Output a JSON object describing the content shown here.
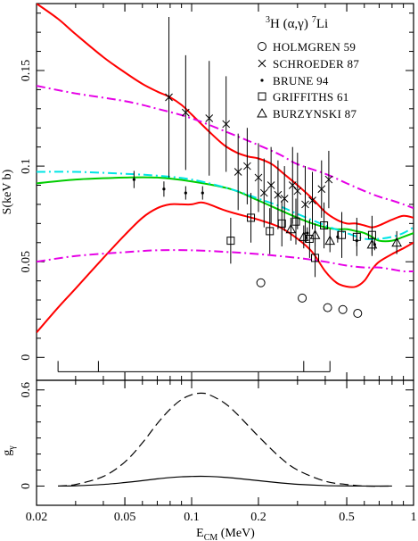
{
  "chart_data": [
    {
      "type": "scatter",
      "title": "³H (α,γ) ⁷Li",
      "title_parts": {
        "a": "3",
        "b": "H (α,γ)",
        "c": "7",
        "d": "Li"
      },
      "xlabel": "E",
      "xlabel_sub": "CM",
      "xlabel_unit": " (MeV)",
      "ylabel": "S(keV b)",
      "x_scale": "log",
      "xlim": [
        0.02,
        1.0
      ],
      "ylim": [
        -0.012,
        0.185
      ],
      "x_ticks": [
        0.02,
        0.05,
        0.1,
        0.2,
        0.5,
        1
      ],
      "x_tick_labels": [
        "0.02",
        "0.05",
        "0.1",
        "0.2",
        "0.5",
        "1"
      ],
      "y_ticks": [
        0,
        0.05,
        0.1,
        0.15
      ],
      "y_tick_labels": [
        "0",
        "0.05",
        "0.1",
        "0.15"
      ],
      "legend_position": "top-right",
      "legend": [
        {
          "marker": "circle",
          "label": "HOLMGREN 59"
        },
        {
          "marker": "cross",
          "label": "SCHROEDER 87"
        },
        {
          "marker": "dot",
          "label": "BRUNE 94"
        },
        {
          "marker": "square",
          "label": "GRIFFITHS 61"
        },
        {
          "marker": "triangle",
          "label": "BURZYNSKI 87"
        }
      ],
      "series": [
        {
          "name": "HOLMGREN 59",
          "marker": "circle",
          "points": [
            {
              "x": 0.205,
              "y": 0.039
            },
            {
              "x": 0.315,
              "y": 0.031
            },
            {
              "x": 0.41,
              "y": 0.026
            },
            {
              "x": 0.48,
              "y": 0.025
            },
            {
              "x": 0.56,
              "y": 0.023
            }
          ]
        },
        {
          "name": "SCHROEDER 87",
          "marker": "cross",
          "points": [
            {
              "x": 0.079,
              "y": 0.136,
              "err": 0.042
            },
            {
              "x": 0.094,
              "y": 0.128,
              "err": 0.03
            },
            {
              "x": 0.12,
              "y": 0.125,
              "err": 0.03
            },
            {
              "x": 0.143,
              "y": 0.122,
              "err": 0.025
            },
            {
              "x": 0.162,
              "y": 0.097,
              "err": 0.02
            },
            {
              "x": 0.178,
              "y": 0.1,
              "err": 0.02
            },
            {
              "x": 0.2,
              "y": 0.094,
              "err": 0.018
            },
            {
              "x": 0.212,
              "y": 0.086,
              "err": 0.018
            },
            {
              "x": 0.228,
              "y": 0.09,
              "err": 0.02
            },
            {
              "x": 0.245,
              "y": 0.085,
              "err": 0.018
            },
            {
              "x": 0.262,
              "y": 0.083,
              "err": 0.017
            },
            {
              "x": 0.285,
              "y": 0.09,
              "err": 0.02
            },
            {
              "x": 0.3,
              "y": 0.087,
              "err": 0.02
            },
            {
              "x": 0.325,
              "y": 0.08,
              "err": 0.02
            },
            {
              "x": 0.35,
              "y": 0.082,
              "err": 0.015
            },
            {
              "x": 0.385,
              "y": 0.088,
              "err": 0.015
            },
            {
              "x": 0.415,
              "y": 0.093,
              "err": 0.015
            }
          ]
        },
        {
          "name": "BRUNE 94",
          "marker": "dot",
          "points": [
            {
              "x": 0.055,
              "y": 0.093,
              "err": 0.0045
            },
            {
              "x": 0.075,
              "y": 0.088,
              "err": 0.004
            },
            {
              "x": 0.094,
              "y": 0.086,
              "err": 0.0035
            },
            {
              "x": 0.112,
              "y": 0.086,
              "err": 0.0035
            },
            {
              "x": 0.332,
              "y": 0.065,
              "err": 0.003
            },
            {
              "x": 0.455,
              "y": 0.063,
              "err": 0.003
            },
            {
              "x": 0.555,
              "y": 0.061,
              "err": 0.003
            },
            {
              "x": 0.668,
              "y": 0.059,
              "err": 0.003
            }
          ]
        },
        {
          "name": "GRIFFITHS 61",
          "marker": "square",
          "points": [
            {
              "x": 0.15,
              "y": 0.061,
              "err": 0.012
            },
            {
              "x": 0.185,
              "y": 0.073,
              "err": 0.013
            },
            {
              "x": 0.225,
              "y": 0.066,
              "err": 0.012
            },
            {
              "x": 0.255,
              "y": 0.07,
              "err": 0.012
            },
            {
              "x": 0.295,
              "y": 0.071,
              "err": 0.012
            },
            {
              "x": 0.34,
              "y": 0.062,
              "err": 0.01
            },
            {
              "x": 0.36,
              "y": 0.052,
              "err": 0.01
            },
            {
              "x": 0.395,
              "y": 0.069,
              "err": 0.012
            },
            {
              "x": 0.475,
              "y": 0.064,
              "err": 0.012
            },
            {
              "x": 0.555,
              "y": 0.063,
              "err": 0.01
            },
            {
              "x": 0.65,
              "y": 0.064,
              "err": 0.01
            }
          ]
        },
        {
          "name": "BURZYNSKI 87",
          "marker": "triangle",
          "points": [
            {
              "x": 0.28,
              "y": 0.067,
              "err": 0.006
            },
            {
              "x": 0.32,
              "y": 0.063,
              "err": 0.006
            },
            {
              "x": 0.36,
              "y": 0.064,
              "err": 0.006
            },
            {
              "x": 0.42,
              "y": 0.061,
              "err": 0.006
            },
            {
              "x": 0.65,
              "y": 0.059,
              "err": 0.006
            },
            {
              "x": 0.84,
              "y": 0.06,
              "err": 0.006
            }
          ]
        }
      ],
      "curves": [
        {
          "color": "#ff0000",
          "style": "solid",
          "points": [
            [
              0.02,
              0.185
            ],
            [
              0.025,
              0.177
            ],
            [
              0.03,
              0.169
            ],
            [
              0.04,
              0.157
            ],
            [
              0.05,
              0.149
            ],
            [
              0.06,
              0.143
            ],
            [
              0.07,
              0.139
            ],
            [
              0.08,
              0.136
            ],
            [
              0.09,
              0.132
            ],
            [
              0.1,
              0.127
            ],
            [
              0.12,
              0.118
            ],
            [
              0.14,
              0.111
            ],
            [
              0.16,
              0.107
            ],
            [
              0.18,
              0.105
            ],
            [
              0.2,
              0.104
            ],
            [
              0.23,
              0.101
            ],
            [
              0.26,
              0.096
            ],
            [
              0.3,
              0.09
            ],
            [
              0.35,
              0.083
            ],
            [
              0.4,
              0.076
            ],
            [
              0.45,
              0.072
            ],
            [
              0.5,
              0.07
            ],
            [
              0.55,
              0.07
            ],
            [
              0.6,
              0.069
            ],
            [
              0.65,
              0.068
            ],
            [
              0.7,
              0.069
            ],
            [
              0.8,
              0.072
            ],
            [
              0.9,
              0.074
            ],
            [
              1.0,
              0.073
            ]
          ]
        },
        {
          "color": "#ff0000",
          "style": "solid",
          "points": [
            [
              0.02,
              0.013
            ],
            [
              0.025,
              0.026
            ],
            [
              0.03,
              0.036
            ],
            [
              0.04,
              0.052
            ],
            [
              0.05,
              0.064
            ],
            [
              0.06,
              0.073
            ],
            [
              0.07,
              0.078
            ],
            [
              0.08,
              0.08
            ],
            [
              0.09,
              0.08
            ],
            [
              0.1,
              0.08
            ],
            [
              0.11,
              0.081
            ],
            [
              0.12,
              0.08
            ],
            [
              0.14,
              0.077
            ],
            [
              0.16,
              0.075
            ],
            [
              0.2,
              0.072
            ],
            [
              0.25,
              0.068
            ],
            [
              0.3,
              0.062
            ],
            [
              0.35,
              0.055
            ],
            [
              0.4,
              0.045
            ],
            [
              0.45,
              0.039
            ],
            [
              0.5,
              0.037
            ],
            [
              0.55,
              0.037
            ],
            [
              0.6,
              0.04
            ],
            [
              0.65,
              0.046
            ],
            [
              0.7,
              0.05
            ],
            [
              0.8,
              0.054
            ],
            [
              0.9,
              0.057
            ],
            [
              1.0,
              0.06
            ]
          ]
        },
        {
          "color": "#00cc00",
          "style": "solid",
          "points": [
            [
              0.02,
              0.091
            ],
            [
              0.03,
              0.093
            ],
            [
              0.05,
              0.094
            ],
            [
              0.07,
              0.094
            ],
            [
              0.1,
              0.092
            ],
            [
              0.15,
              0.088
            ],
            [
              0.2,
              0.082
            ],
            [
              0.25,
              0.077
            ],
            [
              0.3,
              0.073
            ],
            [
              0.35,
              0.07
            ],
            [
              0.4,
              0.068
            ],
            [
              0.45,
              0.067
            ],
            [
              0.5,
              0.067
            ],
            [
              0.55,
              0.066
            ],
            [
              0.6,
              0.065
            ],
            [
              0.65,
              0.063
            ],
            [
              0.7,
              0.061
            ],
            [
              0.8,
              0.061
            ],
            [
              0.9,
              0.063
            ],
            [
              1.0,
              0.065
            ]
          ]
        },
        {
          "color": "#00e5e5",
          "style": "dashdot",
          "points": [
            [
              0.02,
              0.097
            ],
            [
              0.03,
              0.097
            ],
            [
              0.05,
              0.096
            ],
            [
              0.07,
              0.095
            ],
            [
              0.1,
              0.093
            ],
            [
              0.15,
              0.088
            ],
            [
              0.2,
              0.083
            ],
            [
              0.25,
              0.079
            ],
            [
              0.3,
              0.075
            ],
            [
              0.4,
              0.069
            ],
            [
              0.5,
              0.065
            ],
            [
              0.6,
              0.062
            ],
            [
              0.7,
              0.062
            ],
            [
              0.8,
              0.063
            ],
            [
              0.9,
              0.065
            ],
            [
              1.0,
              0.068
            ]
          ]
        },
        {
          "color": "#e600e6",
          "style": "dashdot",
          "points": [
            [
              0.02,
              0.142
            ],
            [
              0.03,
              0.138
            ],
            [
              0.05,
              0.134
            ],
            [
              0.07,
              0.13
            ],
            [
              0.1,
              0.125
            ],
            [
              0.15,
              0.117
            ],
            [
              0.2,
              0.111
            ],
            [
              0.25,
              0.106
            ],
            [
              0.3,
              0.101
            ],
            [
              0.4,
              0.096
            ],
            [
              0.5,
              0.091
            ],
            [
              0.6,
              0.087
            ],
            [
              0.7,
              0.084
            ],
            [
              0.8,
              0.082
            ],
            [
              0.9,
              0.08
            ],
            [
              1.0,
              0.078
            ]
          ]
        },
        {
          "color": "#e600e6",
          "style": "dashdot",
          "points": [
            [
              0.02,
              0.05
            ],
            [
              0.03,
              0.053
            ],
            [
              0.05,
              0.055
            ],
            [
              0.07,
              0.056
            ],
            [
              0.1,
              0.056
            ],
            [
              0.15,
              0.055
            ],
            [
              0.2,
              0.054
            ],
            [
              0.3,
              0.052
            ],
            [
              0.4,
              0.05
            ],
            [
              0.5,
              0.048
            ],
            [
              0.6,
              0.047
            ],
            [
              0.7,
              0.047
            ],
            [
              0.8,
              0.046
            ],
            [
              0.9,
              0.045
            ],
            [
              1.0,
              0.045
            ]
          ]
        }
      ],
      "energy_markers": [
        0.025,
        0.038,
        0.32,
        0.42
      ]
    },
    {
      "type": "line",
      "ylabel": "g",
      "ylabel_sub": "γ",
      "x_scale": "log",
      "xlim": [
        0.02,
        1.0
      ],
      "ylim": [
        -0.12,
        0.66
      ],
      "y_ticks": [
        0,
        0.6
      ],
      "y_tick_labels": [
        "0",
        "0.6"
      ],
      "series": [
        {
          "style": "dashed",
          "points": [
            [
              0.025,
              0.0
            ],
            [
              0.03,
              0.01
            ],
            [
              0.04,
              0.06
            ],
            [
              0.05,
              0.15
            ],
            [
              0.06,
              0.27
            ],
            [
              0.07,
              0.39
            ],
            [
              0.08,
              0.48
            ],
            [
              0.09,
              0.54
            ],
            [
              0.1,
              0.57
            ],
            [
              0.11,
              0.58
            ],
            [
              0.12,
              0.57
            ],
            [
              0.14,
              0.52
            ],
            [
              0.16,
              0.45
            ],
            [
              0.2,
              0.31
            ],
            [
              0.25,
              0.18
            ],
            [
              0.3,
              0.1
            ],
            [
              0.4,
              0.03
            ],
            [
              0.5,
              0.01
            ],
            [
              0.6,
              0.0
            ],
            [
              0.8,
              0.0
            ]
          ]
        },
        {
          "style": "solid",
          "points": [
            [
              0.025,
              0.0
            ],
            [
              0.03,
              0.002
            ],
            [
              0.04,
              0.01
            ],
            [
              0.05,
              0.022
            ],
            [
              0.06,
              0.034
            ],
            [
              0.07,
              0.045
            ],
            [
              0.08,
              0.053
            ],
            [
              0.09,
              0.058
            ],
            [
              0.1,
              0.06
            ],
            [
              0.11,
              0.061
            ],
            [
              0.12,
              0.06
            ],
            [
              0.14,
              0.055
            ],
            [
              0.16,
              0.048
            ],
            [
              0.2,
              0.034
            ],
            [
              0.25,
              0.02
            ],
            [
              0.3,
              0.011
            ],
            [
              0.4,
              0.003
            ],
            [
              0.5,
              0.001
            ],
            [
              0.6,
              0.0
            ],
            [
              0.8,
              0.0
            ]
          ]
        }
      ]
    }
  ]
}
